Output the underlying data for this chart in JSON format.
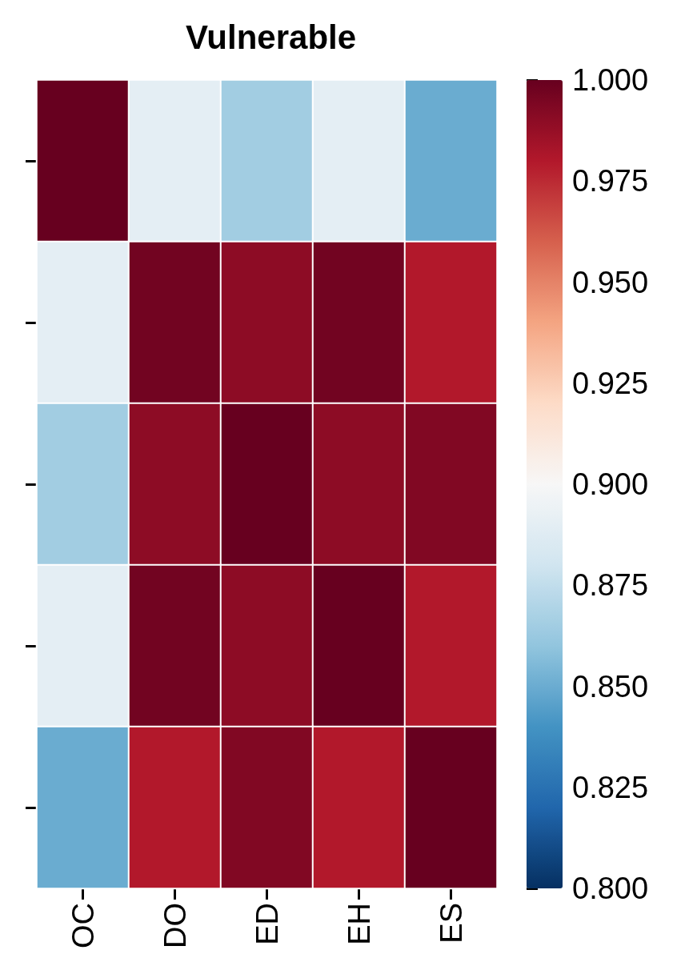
{
  "chart_data": {
    "type": "heatmap",
    "title": "Vulnerable",
    "categories": [
      "OC",
      "DO",
      "ED",
      "EH",
      "ES"
    ],
    "y_categories": [
      null,
      null,
      null,
      null,
      null
    ],
    "cells": [
      [
        1.0,
        0.89,
        0.865,
        0.89,
        0.85
      ],
      [
        0.89,
        0.997,
        0.99,
        0.997,
        0.98
      ],
      [
        0.865,
        0.99,
        1.0,
        0.99,
        0.993
      ],
      [
        0.89,
        0.997,
        0.99,
        1.0,
        0.98
      ],
      [
        0.85,
        0.98,
        0.993,
        0.98,
        1.0
      ]
    ],
    "clim": [
      0.8,
      1.0
    ],
    "cticks": [
      {
        "value": 0.8,
        "label": "0.800"
      },
      {
        "value": 0.825,
        "label": "0.825"
      },
      {
        "value": 0.85,
        "label": "0.850"
      },
      {
        "value": 0.875,
        "label": "0.875"
      },
      {
        "value": 0.9,
        "label": "0.900"
      },
      {
        "value": 0.925,
        "label": "0.925"
      },
      {
        "value": 0.95,
        "label": "0.950"
      },
      {
        "value": 0.975,
        "label": "0.975"
      },
      {
        "value": 1.0,
        "label": "1.000"
      }
    ]
  }
}
